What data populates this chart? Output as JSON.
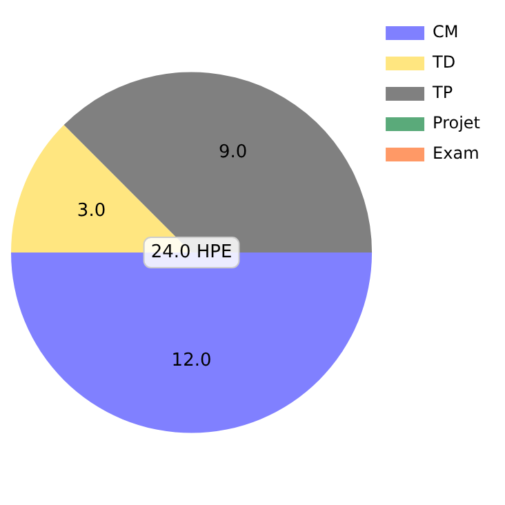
{
  "chart_data": {
    "type": "pie",
    "categories": [
      "CM",
      "TD",
      "TP",
      "Projet",
      "Exam"
    ],
    "values": [
      12,
      3,
      9,
      0,
      0
    ],
    "colors": [
      "#8080ff",
      "#ffe680",
      "#808080",
      "#5aaa7a",
      "#ff9966"
    ],
    "value_labels": [
      "12.0",
      "3.0",
      "9.0",
      null,
      null
    ],
    "annotations": [
      "24.0 HPE"
    ],
    "legend": "top right"
  }
}
